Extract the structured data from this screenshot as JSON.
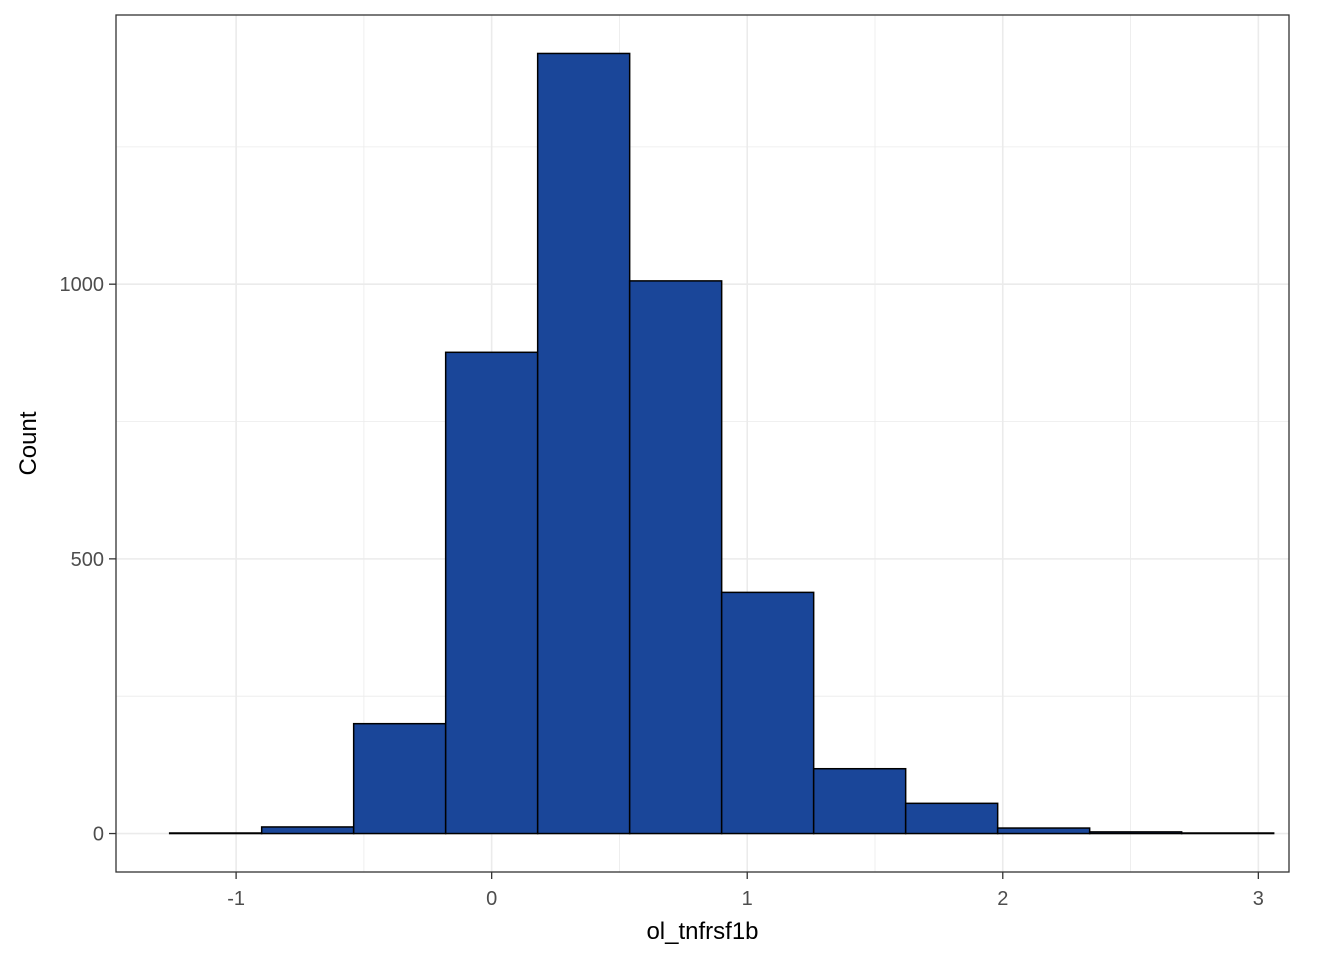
{
  "chart_data": {
    "type": "bar",
    "subtype": "histogram",
    "xlabel": "ol_tnfrsf1b",
    "ylabel": "Count",
    "x_ticks": [
      "-1",
      "0",
      "1",
      "2",
      "3"
    ],
    "y_ticks": [
      "0",
      "500",
      "1000"
    ],
    "x_tick_values": [
      -1,
      0,
      1,
      2,
      3
    ],
    "y_tick_values": [
      0,
      500,
      1000
    ],
    "xlim": [
      -1.47,
      3.12
    ],
    "ylim": [
      -70,
      1490
    ],
    "bins": [
      {
        "x0": -1.26,
        "x1": -0.9,
        "count": 1
      },
      {
        "x0": -0.9,
        "x1": -0.54,
        "count": 12
      },
      {
        "x0": -0.54,
        "x1": -0.18,
        "count": 200
      },
      {
        "x0": -0.18,
        "x1": 0.18,
        "count": 876
      },
      {
        "x0": 0.18,
        "x1": 0.54,
        "count": 1420
      },
      {
        "x0": 0.54,
        "x1": 0.9,
        "count": 1006
      },
      {
        "x0": 0.9,
        "x1": 1.26,
        "count": 439
      },
      {
        "x0": 1.26,
        "x1": 1.62,
        "count": 118
      },
      {
        "x0": 1.62,
        "x1": 1.98,
        "count": 55
      },
      {
        "x0": 1.98,
        "x1": 2.34,
        "count": 10
      },
      {
        "x0": 2.34,
        "x1": 2.7,
        "count": 3
      },
      {
        "x0": 2.7,
        "x1": 3.06,
        "count": 1
      }
    ],
    "grid": true,
    "legend": "none",
    "colors": {
      "bar_fill": "#1a4699",
      "bar_stroke": "#000000",
      "grid": "#ebebeb",
      "panel_border": "#333333",
      "background": "#ffffff"
    }
  }
}
